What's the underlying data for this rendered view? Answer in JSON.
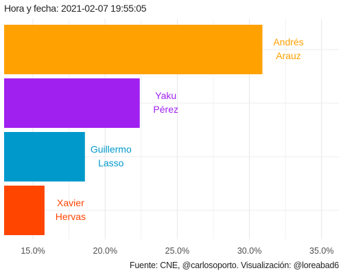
{
  "chart_data": {
    "type": "bar",
    "orientation": "horizontal",
    "subtitle": "Hora y fecha: 2021-02-07 19:55:05",
    "caption": "Fuente: CNE, @carlosoporto. Visualización: @loreabad6",
    "xlim": [
      13.0,
      36.2
    ],
    "x_ticks": [
      {
        "value": 15,
        "label": "15.0%"
      },
      {
        "value": 20,
        "label": "20.0%"
      },
      {
        "value": 25,
        "label": "25.0%"
      },
      {
        "value": 30,
        "label": "30.0%"
      },
      {
        "value": 35,
        "label": "35.0%"
      }
    ],
    "grid": true,
    "legend": "none",
    "bars": [
      {
        "name": "Andrés Arauz",
        "label_lines": [
          "Andrés",
          "Arauz"
        ],
        "value": 30.9,
        "color": "#FFA100"
      },
      {
        "name": "Yaku Pérez",
        "label_lines": [
          "Yaku",
          "Pérez"
        ],
        "value": 22.4,
        "color": "#A020F0"
      },
      {
        "name": "Guillermo Lasso",
        "label_lines": [
          "Guillermo",
          "Lasso"
        ],
        "value": 18.6,
        "color": "#0099CC"
      },
      {
        "name": "Xavier Hervas",
        "label_lines": [
          "Xavier",
          "Hervas"
        ],
        "value": 15.8,
        "color": "#FF4500"
      }
    ]
  }
}
